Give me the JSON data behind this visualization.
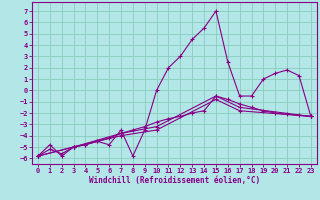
{
  "title": "",
  "xlabel": "Windchill (Refroidissement éolien,°C)",
  "ylabel": "",
  "bg_color": "#b3e6e6",
  "grid_color": "#88ccbb",
  "line_color": "#880088",
  "xlim": [
    -0.5,
    23.5
  ],
  "ylim": [
    -6.5,
    7.8
  ],
  "xticks": [
    0,
    1,
    2,
    3,
    4,
    5,
    6,
    7,
    8,
    9,
    10,
    11,
    12,
    13,
    14,
    15,
    16,
    17,
    18,
    19,
    20,
    21,
    22,
    23
  ],
  "yticks": [
    -6,
    -5,
    -4,
    -3,
    -2,
    -1,
    0,
    1,
    2,
    3,
    4,
    5,
    6,
    7
  ],
  "series1": [
    [
      0,
      -5.8
    ],
    [
      1,
      -4.8
    ],
    [
      2,
      -5.8
    ],
    [
      3,
      -5.0
    ],
    [
      4,
      -4.8
    ],
    [
      5,
      -4.5
    ],
    [
      6,
      -4.8
    ],
    [
      7,
      -3.5
    ],
    [
      8,
      -5.8
    ],
    [
      9,
      -3.5
    ],
    [
      10,
      0.0
    ],
    [
      11,
      2.0
    ],
    [
      12,
      3.0
    ],
    [
      13,
      4.5
    ],
    [
      14,
      5.5
    ],
    [
      15,
      7.0
    ],
    [
      16,
      2.5
    ],
    [
      17,
      -0.5
    ],
    [
      18,
      -0.5
    ],
    [
      19,
      1.0
    ],
    [
      20,
      1.5
    ],
    [
      21,
      1.8
    ],
    [
      22,
      1.3
    ],
    [
      23,
      -2.3
    ]
  ],
  "series2": [
    [
      0,
      -5.8
    ],
    [
      1,
      -5.2
    ],
    [
      2,
      -5.6
    ],
    [
      3,
      -5.0
    ],
    [
      4,
      -4.8
    ],
    [
      5,
      -4.5
    ],
    [
      6,
      -4.2
    ],
    [
      7,
      -3.8
    ],
    [
      8,
      -3.5
    ],
    [
      9,
      -3.2
    ],
    [
      10,
      -2.8
    ],
    [
      11,
      -2.5
    ],
    [
      12,
      -2.3
    ],
    [
      13,
      -2.0
    ],
    [
      14,
      -1.8
    ],
    [
      15,
      -0.5
    ],
    [
      16,
      -0.8
    ],
    [
      17,
      -1.2
    ],
    [
      18,
      -1.5
    ],
    [
      19,
      -1.8
    ],
    [
      20,
      -2.0
    ],
    [
      21,
      -2.1
    ],
    [
      22,
      -2.2
    ],
    [
      23,
      -2.3
    ]
  ],
  "series3": [
    [
      0,
      -5.8
    ],
    [
      3,
      -5.0
    ],
    [
      7,
      -3.8
    ],
    [
      10,
      -3.2
    ],
    [
      15,
      -0.5
    ],
    [
      17,
      -1.5
    ],
    [
      23,
      -2.3
    ]
  ],
  "series4": [
    [
      0,
      -5.8
    ],
    [
      3,
      -5.0
    ],
    [
      7,
      -4.0
    ],
    [
      10,
      -3.5
    ],
    [
      15,
      -0.8
    ],
    [
      17,
      -1.8
    ],
    [
      23,
      -2.3
    ]
  ]
}
